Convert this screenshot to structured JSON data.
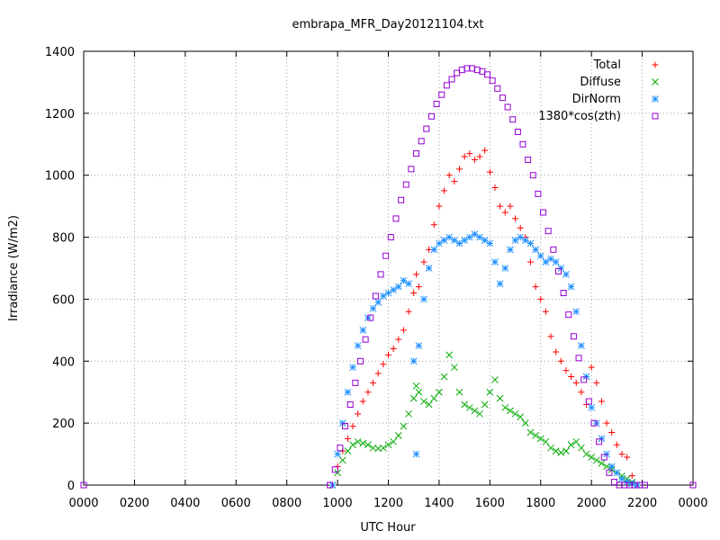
{
  "chart_data": {
    "type": "scatter",
    "title": "embrapa_MFR_Day20121104.txt",
    "xlabel": "UTC Hour",
    "ylabel": "Irradiance (W/m2)",
    "xlim": [
      0,
      24
    ],
    "ylim": [
      0,
      1400
    ],
    "grid": true,
    "legend_position": "top-right",
    "x_ticks": [
      0,
      2,
      4,
      6,
      8,
      10,
      12,
      14,
      16,
      18,
      20,
      22,
      24
    ],
    "x_tick_labels": [
      "0000",
      "0200",
      "0400",
      "0600",
      "0800",
      "1000",
      "1200",
      "1400",
      "1600",
      "1800",
      "2000",
      "2200",
      "0000"
    ],
    "y_ticks": [
      0,
      200,
      400,
      600,
      800,
      1000,
      1200,
      1400
    ],
    "y_tick_labels": [
      "0",
      "200",
      "400",
      "600",
      "800",
      "1000",
      "1200",
      "1400"
    ],
    "series": [
      {
        "name": "Total",
        "marker": "plus",
        "color": "#ff0000",
        "x": [
          9.8,
          10.0,
          10.2,
          10.4,
          10.6,
          10.8,
          11.0,
          11.2,
          11.4,
          11.6,
          11.8,
          12.0,
          12.2,
          12.4,
          12.6,
          12.8,
          13.0,
          13.1,
          13.2,
          13.4,
          13.6,
          13.8,
          14.0,
          14.2,
          14.4,
          14.6,
          14.8,
          15.0,
          15.2,
          15.4,
          15.6,
          15.8,
          16.0,
          16.2,
          16.4,
          16.6,
          16.8,
          17.0,
          17.2,
          17.4,
          17.6,
          17.8,
          18.0,
          18.2,
          18.4,
          18.6,
          18.8,
          19.0,
          19.2,
          19.4,
          19.6,
          19.8,
          20.0,
          20.2,
          20.4,
          20.6,
          20.8,
          21.0,
          21.2,
          21.4,
          21.6,
          21.8
        ],
        "y": [
          0,
          60,
          110,
          150,
          190,
          230,
          270,
          300,
          330,
          360,
          390,
          420,
          440,
          470,
          500,
          560,
          620,
          680,
          640,
          720,
          760,
          840,
          900,
          950,
          1000,
          980,
          1020,
          1060,
          1070,
          1050,
          1060,
          1080,
          1010,
          960,
          900,
          880,
          900,
          860,
          830,
          800,
          720,
          640,
          600,
          560,
          480,
          430,
          400,
          370,
          350,
          330,
          300,
          260,
          380,
          330,
          270,
          200,
          170,
          130,
          100,
          90,
          30,
          0
        ]
      },
      {
        "name": "Diffuse",
        "marker": "x",
        "color": "#00aa00",
        "x": [
          9.8,
          10.0,
          10.2,
          10.4,
          10.6,
          10.8,
          11.0,
          11.2,
          11.4,
          11.6,
          11.8,
          12.0,
          12.2,
          12.4,
          12.6,
          12.8,
          13.0,
          13.1,
          13.2,
          13.4,
          13.6,
          13.8,
          14.0,
          14.2,
          14.4,
          14.6,
          14.8,
          15.0,
          15.2,
          15.4,
          15.6,
          15.8,
          16.0,
          16.2,
          16.4,
          16.6,
          16.8,
          17.0,
          17.2,
          17.4,
          17.6,
          17.8,
          18.0,
          18.2,
          18.4,
          18.6,
          18.8,
          19.0,
          19.2,
          19.4,
          19.6,
          19.8,
          20.0,
          20.2,
          20.4,
          20.6,
          20.8,
          21.0,
          21.2,
          21.4,
          21.6,
          21.8
        ],
        "y": [
          0,
          40,
          80,
          110,
          130,
          140,
          135,
          130,
          120,
          118,
          120,
          130,
          140,
          160,
          190,
          230,
          280,
          320,
          300,
          270,
          260,
          280,
          300,
          350,
          420,
          380,
          300,
          260,
          250,
          240,
          230,
          260,
          300,
          340,
          280,
          250,
          240,
          230,
          220,
          200,
          170,
          160,
          150,
          140,
          120,
          110,
          105,
          110,
          130,
          140,
          120,
          100,
          90,
          80,
          70,
          60,
          50,
          40,
          30,
          20,
          10,
          0
        ]
      },
      {
        "name": "DirNorm",
        "marker": "star",
        "color": "#1e90ff",
        "x": [
          9.8,
          10.0,
          10.2,
          10.4,
          10.6,
          10.8,
          11.0,
          11.2,
          11.4,
          11.6,
          11.8,
          12.0,
          12.2,
          12.4,
          12.6,
          12.8,
          13.0,
          13.1,
          13.2,
          13.4,
          13.6,
          13.8,
          14.0,
          14.2,
          14.4,
          14.6,
          14.8,
          15.0,
          15.2,
          15.4,
          15.6,
          15.8,
          16.0,
          16.2,
          16.4,
          16.6,
          16.8,
          17.0,
          17.2,
          17.4,
          17.6,
          17.8,
          18.0,
          18.2,
          18.4,
          18.6,
          18.8,
          19.0,
          19.2,
          19.4,
          19.6,
          19.8,
          20.0,
          20.2,
          20.4,
          20.6,
          20.8,
          21.0,
          21.2,
          21.4,
          21.6,
          21.8
        ],
        "y": [
          0,
          100,
          200,
          300,
          380,
          450,
          500,
          540,
          570,
          590,
          610,
          620,
          630,
          640,
          660,
          650,
          400,
          100,
          450,
          600,
          700,
          760,
          780,
          790,
          800,
          790,
          780,
          790,
          800,
          810,
          800,
          790,
          780,
          720,
          650,
          700,
          760,
          790,
          800,
          790,
          780,
          760,
          740,
          720,
          730,
          720,
          700,
          680,
          640,
          560,
          450,
          350,
          250,
          200,
          150,
          100,
          60,
          40,
          20,
          10,
          5,
          0
        ]
      },
      {
        "name": "1380*cos(zth)",
        "marker": "square",
        "color": "#9400d3",
        "x": [
          0,
          9.7,
          9.9,
          10.1,
          10.3,
          10.5,
          10.7,
          10.9,
          11.1,
          11.3,
          11.5,
          11.7,
          11.9,
          12.1,
          12.3,
          12.5,
          12.7,
          12.9,
          13.1,
          13.3,
          13.5,
          13.7,
          13.9,
          14.1,
          14.3,
          14.5,
          14.7,
          14.9,
          15.1,
          15.3,
          15.5,
          15.7,
          15.9,
          16.1,
          16.3,
          16.5,
          16.7,
          16.9,
          17.1,
          17.3,
          17.5,
          17.7,
          17.9,
          18.1,
          18.3,
          18.5,
          18.7,
          18.9,
          19.1,
          19.3,
          19.5,
          19.7,
          19.9,
          20.1,
          20.3,
          20.5,
          20.7,
          20.9,
          21.1,
          21.3,
          21.5,
          21.7,
          21.9,
          22.1,
          24
        ],
        "y": [
          0,
          0,
          50,
          120,
          190,
          260,
          330,
          400,
          470,
          540,
          610,
          680,
          740,
          800,
          860,
          920,
          970,
          1020,
          1070,
          1110,
          1150,
          1190,
          1230,
          1260,
          1290,
          1310,
          1330,
          1340,
          1345,
          1345,
          1340,
          1335,
          1325,
          1305,
          1280,
          1250,
          1220,
          1180,
          1140,
          1100,
          1050,
          1000,
          940,
          880,
          820,
          760,
          690,
          620,
          550,
          480,
          410,
          340,
          270,
          200,
          140,
          90,
          40,
          10,
          0,
          0,
          0,
          0,
          0,
          0,
          0
        ]
      }
    ]
  }
}
